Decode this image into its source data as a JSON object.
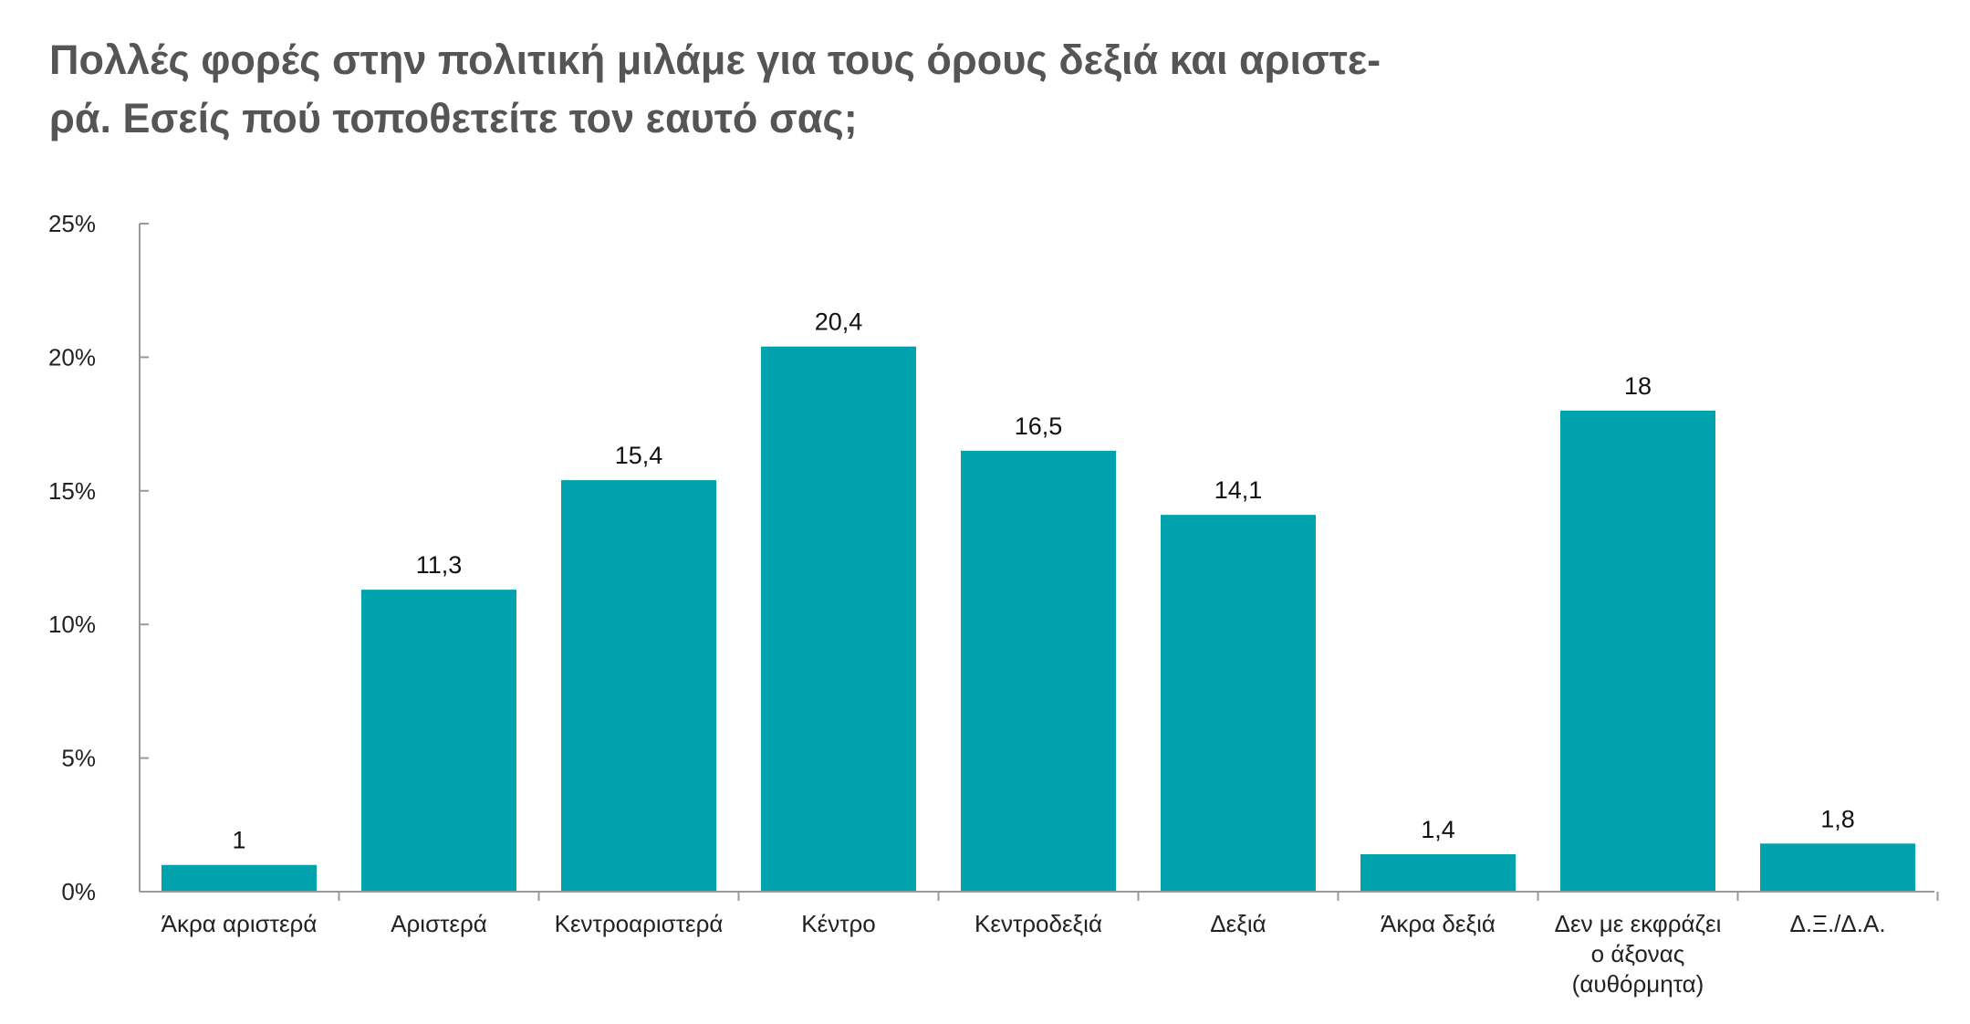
{
  "title_lines": [
    "Πολλές φορές στην πολιτική μιλάμε για τους όρους δεξιά και αριστε-",
    "ρά. Εσείς πού τοποθετείτε τον εαυτό σας;"
  ],
  "colors": {
    "bar": "#00a3ad",
    "axis": "#999999",
    "title": "#555555"
  },
  "chart_data": {
    "type": "bar",
    "title": "Πολλές φορές στην πολιτική μιλάμε για τους όρους δεξιά και αριστε-ρά. Εσείς πού τοποθετείτε τον εαυτό σας;",
    "categories": [
      [
        "Άκρα αριστερά"
      ],
      [
        "Αριστερά"
      ],
      [
        "Κεντροαριστερά"
      ],
      [
        "Κέντρο"
      ],
      [
        "Κεντροδεξιά"
      ],
      [
        "Δεξιά"
      ],
      [
        "Άκρα δεξιά"
      ],
      [
        "Δεν με εκφράζει",
        "ο άξονας",
        "(αυθόρμητα)"
      ],
      [
        "Δ.Ξ./Δ.Α."
      ]
    ],
    "values": [
      1,
      11.3,
      15.4,
      20.4,
      16.5,
      14.1,
      1.4,
      18,
      1.8
    ],
    "value_labels": [
      "1",
      "11,3",
      "15,4",
      "20,4",
      "16,5",
      "14,1",
      "1,4",
      "18",
      "1,8"
    ],
    "ylim": [
      0,
      25
    ],
    "yticks": [
      0,
      5,
      10,
      15,
      20,
      25
    ],
    "ytick_labels": [
      "0%",
      "5%",
      "10%",
      "15%",
      "20%",
      "25%"
    ],
    "xlabel": "",
    "ylabel": "",
    "grid": false,
    "legend": "none"
  }
}
